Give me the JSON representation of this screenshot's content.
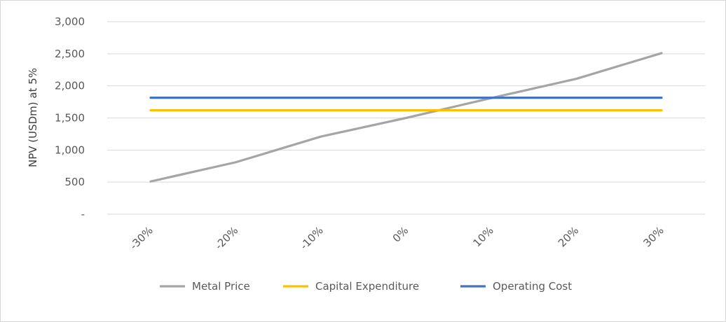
{
  "chart_data": {
    "type": "line",
    "title": "",
    "xlabel": "",
    "ylabel": "NPV (USDm) at 5%",
    "categories": [
      "-30%",
      "-20%",
      "-10%",
      "0%",
      "10%",
      "20%",
      "30%"
    ],
    "y_tick_labels": [
      "-",
      "500",
      "1,000",
      "1,500",
      "2,000",
      "2,500",
      "3,000"
    ],
    "ylim": [
      0,
      3000
    ],
    "grid": true,
    "legend_position": "bottom",
    "series": [
      {
        "name": "Metal Price",
        "color": "#a5a5a5",
        "values": [
          510,
          810,
          1210,
          1500,
          1810,
          2110,
          2510
        ]
      },
      {
        "name": "Capital Expenditure",
        "color": "#ffc000",
        "values": [
          1620,
          1620,
          1620,
          1620,
          1620,
          1620,
          1620
        ]
      },
      {
        "name": "Operating Cost",
        "color": "#4472c4",
        "values": [
          1815,
          1815,
          1815,
          1815,
          1815,
          1815,
          1815
        ]
      }
    ]
  }
}
